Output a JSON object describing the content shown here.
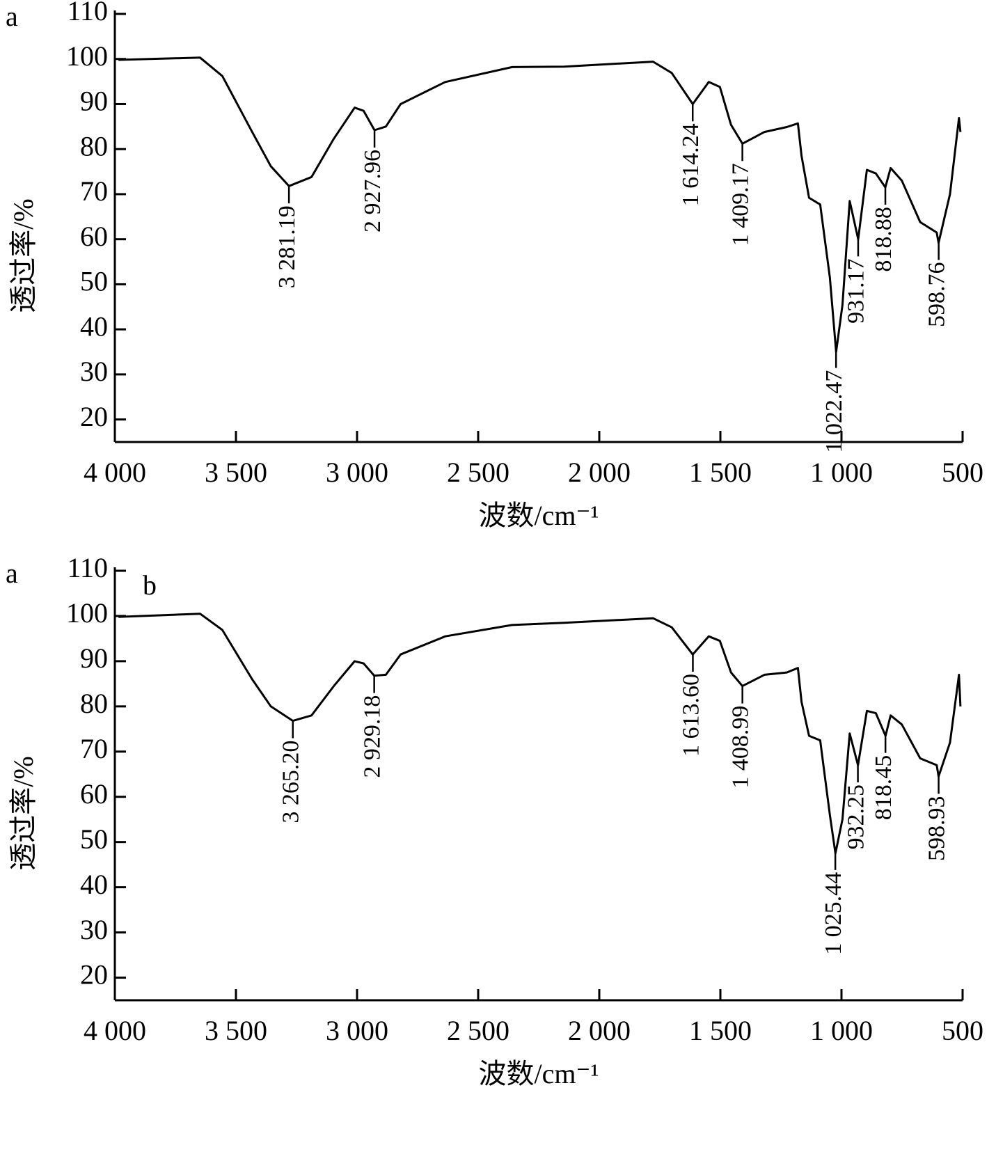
{
  "chart_data": [
    {
      "type": "line",
      "panel_labels": [
        "a"
      ],
      "xlabel": "波数/cm⁻¹",
      "ylabel": "透过率/%",
      "color": "#000000",
      "xlim": [
        4000,
        500
      ],
      "ylim": [
        15,
        110
      ],
      "xticks": [
        {
          "value": 4000,
          "label": "4 000"
        },
        {
          "value": 3500,
          "label": "3 500"
        },
        {
          "value": 3000,
          "label": "3 000"
        },
        {
          "value": 2500,
          "label": "2 500"
        },
        {
          "value": 2000,
          "label": "2 000"
        },
        {
          "value": 1500,
          "label": "1 500"
        },
        {
          "value": 1000,
          "label": "1 000"
        },
        500
      ],
      "yticks": [
        20,
        30,
        40,
        50,
        60,
        70,
        80,
        90,
        100,
        110
      ],
      "x": [
        3985,
        3648,
        3556,
        3433,
        3356,
        3281,
        3188,
        3096,
        3010,
        2973,
        2928,
        2881,
        2820,
        2636,
        2360,
        2146,
        1778,
        1701,
        1614,
        1548,
        1502,
        1456,
        1409,
        1318,
        1226,
        1180,
        1165,
        1134,
        1088,
        1048,
        1022,
        996,
        966,
        931,
        895,
        858,
        819,
        797,
        751,
        675,
        607,
        599,
        552,
        515,
        509
      ],
      "values": [
        99.8,
        100.3,
        96.2,
        83.8,
        76.2,
        71.8,
        73.8,
        82.3,
        89.2,
        88.5,
        84.2,
        85,
        90,
        94.9,
        98.2,
        98.3,
        99.4,
        96.9,
        90,
        94.9,
        93.8,
        85.4,
        81.2,
        83.8,
        84.9,
        85.7,
        78.5,
        69.2,
        67.7,
        51.5,
        35,
        45.4,
        68.5,
        60,
        75.4,
        74.6,
        71.5,
        75.8,
        73,
        63.8,
        61.5,
        59.2,
        70,
        86.9,
        83.8
      ],
      "peaks": [
        {
          "x": 3281.19,
          "label": "3 281.19"
        },
        {
          "x": 2927.96,
          "label": "2 927.96"
        },
        {
          "x": 1614.24,
          "label": "1 614.24"
        },
        {
          "x": 1409.17,
          "label": "1 409.17"
        },
        {
          "x": 1022.47,
          "label": "1 022.47"
        },
        {
          "x": 931.17,
          "label": "931.17"
        },
        {
          "x": 818.88,
          "label": "818.88"
        },
        {
          "x": 598.76,
          "label": "598.76"
        }
      ]
    },
    {
      "type": "line",
      "panel_labels": [
        "a",
        "b"
      ],
      "xlabel": "波数/cm⁻¹",
      "ylabel": "透过率/%",
      "color": "#000000",
      "xlim": [
        4000,
        500
      ],
      "ylim": [
        15,
        110
      ],
      "xticks": [
        {
          "value": 4000,
          "label": "4 000"
        },
        {
          "value": 3500,
          "label": "3 500"
        },
        {
          "value": 3000,
          "label": "3 000"
        },
        {
          "value": 2500,
          "label": "2 500"
        },
        {
          "value": 2000,
          "label": "2 000"
        },
        {
          "value": 1500,
          "label": "1 500"
        },
        {
          "value": 1000,
          "label": "1 000"
        },
        500
      ],
      "yticks": [
        20,
        30,
        40,
        50,
        60,
        70,
        80,
        90,
        100,
        110
      ],
      "x": [
        3985,
        3648,
        3556,
        3433,
        3356,
        3265,
        3188,
        3096,
        3010,
        2973,
        2929,
        2881,
        2820,
        2636,
        2360,
        2146,
        1778,
        1701,
        1614,
        1548,
        1502,
        1456,
        1409,
        1318,
        1226,
        1180,
        1165,
        1134,
        1088,
        1048,
        1025,
        996,
        966,
        932,
        895,
        858,
        818,
        797,
        751,
        675,
        607,
        599,
        552,
        515,
        509
      ],
      "values": [
        99.8,
        100.5,
        96.9,
        86,
        80,
        76.8,
        78,
        84.5,
        90,
        89.5,
        86.8,
        87,
        91.5,
        95.5,
        98,
        98.5,
        99.5,
        97.5,
        91.5,
        95.5,
        94.5,
        87.5,
        84.5,
        87,
        87.5,
        88.5,
        81,
        73.5,
        72.5,
        56,
        47.5,
        55,
        74,
        67,
        79,
        78.5,
        73.5,
        78,
        76,
        68.5,
        67,
        64.5,
        72,
        87,
        80
      ],
      "peaks": [
        {
          "x": 3265.2,
          "label": "3 265.20"
        },
        {
          "x": 2929.18,
          "label": "2 929.18"
        },
        {
          "x": 1613.6,
          "label": "1 613.60"
        },
        {
          "x": 1408.99,
          "label": "1 408.99"
        },
        {
          "x": 1025.44,
          "label": "1 025.44"
        },
        {
          "x": 932.25,
          "label": "932.25"
        },
        {
          "x": 818.45,
          "label": "818.45"
        },
        {
          "x": 598.93,
          "label": "598.93"
        }
      ]
    }
  ]
}
